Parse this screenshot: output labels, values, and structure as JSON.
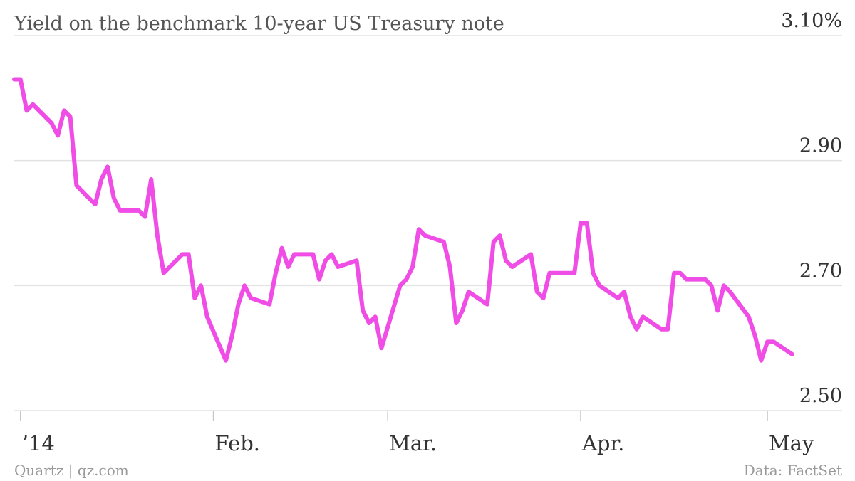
{
  "chart_data": {
    "type": "line",
    "title": "Yield on the benchmark 10-year US Treasury note",
    "y_ticks": [
      {
        "value": 3.1,
        "label": "3.10%"
      },
      {
        "value": 2.9,
        "label": "2.90"
      },
      {
        "value": 2.7,
        "label": "2.70"
      },
      {
        "value": 2.5,
        "label": "2.50"
      }
    ],
    "ylim": [
      2.5,
      3.1
    ],
    "xlim": [
      "2013-12-31",
      "2014-05-05"
    ],
    "x_ticks": [
      {
        "date": "2014-01-01",
        "label": "’14"
      },
      {
        "date": "2014-02-01",
        "label": "Feb."
      },
      {
        "date": "2014-03-01",
        "label": "Mar."
      },
      {
        "date": "2014-04-01",
        "label": "Apr."
      },
      {
        "date": "2014-05-01",
        "label": "May"
      }
    ],
    "grid": true,
    "line_color": "#f04de6",
    "series": [
      {
        "x": [
          "2013-12-31",
          "2014-01-01",
          "2014-01-02",
          "2014-01-03",
          "2014-01-06",
          "2014-01-07",
          "2014-01-08",
          "2014-01-09",
          "2014-01-10",
          "2014-01-13",
          "2014-01-14",
          "2014-01-15",
          "2014-01-16",
          "2014-01-17",
          "2014-01-20",
          "2014-01-21",
          "2014-01-22",
          "2014-01-23",
          "2014-01-24",
          "2014-01-27",
          "2014-01-28",
          "2014-01-29",
          "2014-01-30",
          "2014-01-31",
          "2014-02-03",
          "2014-02-04",
          "2014-02-05",
          "2014-02-06",
          "2014-02-07",
          "2014-02-10",
          "2014-02-11",
          "2014-02-12",
          "2014-02-13",
          "2014-02-14",
          "2014-02-17",
          "2014-02-18",
          "2014-02-19",
          "2014-02-20",
          "2014-02-21",
          "2014-02-24",
          "2014-02-25",
          "2014-02-26",
          "2014-02-27",
          "2014-02-28",
          "2014-03-03",
          "2014-03-04",
          "2014-03-05",
          "2014-03-06",
          "2014-03-07",
          "2014-03-10",
          "2014-03-11",
          "2014-03-12",
          "2014-03-13",
          "2014-03-14",
          "2014-03-17",
          "2014-03-18",
          "2014-03-19",
          "2014-03-20",
          "2014-03-21",
          "2014-03-24",
          "2014-03-25",
          "2014-03-26",
          "2014-03-27",
          "2014-03-28",
          "2014-03-31",
          "2014-04-01",
          "2014-04-02",
          "2014-04-03",
          "2014-04-04",
          "2014-04-07",
          "2014-04-08",
          "2014-04-09",
          "2014-04-10",
          "2014-04-11",
          "2014-04-14",
          "2014-04-15",
          "2014-04-16",
          "2014-04-17",
          "2014-04-18",
          "2014-04-21",
          "2014-04-22",
          "2014-04-23",
          "2014-04-24",
          "2014-04-25",
          "2014-04-28",
          "2014-04-29",
          "2014-04-30",
          "2014-05-01",
          "2014-05-02",
          "2014-05-05"
        ],
        "y": [
          3.03,
          3.03,
          2.98,
          2.99,
          2.96,
          2.94,
          2.98,
          2.97,
          2.86,
          2.83,
          2.87,
          2.89,
          2.84,
          2.82,
          2.82,
          2.81,
          2.87,
          2.78,
          2.72,
          2.75,
          2.75,
          2.68,
          2.7,
          2.65,
          2.58,
          2.62,
          2.67,
          2.7,
          2.68,
          2.67,
          2.72,
          2.76,
          2.73,
          2.75,
          2.75,
          2.71,
          2.74,
          2.75,
          2.73,
          2.74,
          2.66,
          2.64,
          2.65,
          2.6,
          2.7,
          2.71,
          2.73,
          2.79,
          2.78,
          2.77,
          2.73,
          2.64,
          2.66,
          2.69,
          2.67,
          2.77,
          2.78,
          2.74,
          2.73,
          2.75,
          2.69,
          2.68,
          2.72,
          2.72,
          2.72,
          2.8,
          2.8,
          2.72,
          2.7,
          2.68,
          2.69,
          2.65,
          2.63,
          2.65,
          2.63,
          2.63,
          2.72,
          2.72,
          2.71,
          2.71,
          2.7,
          2.66,
          2.7,
          2.69,
          2.65,
          2.62,
          2.58,
          2.61,
          2.61,
          2.59
        ]
      }
    ]
  },
  "footer": {
    "source_left": "Quartz | qz.com",
    "source_right": "Data: FactSet"
  }
}
